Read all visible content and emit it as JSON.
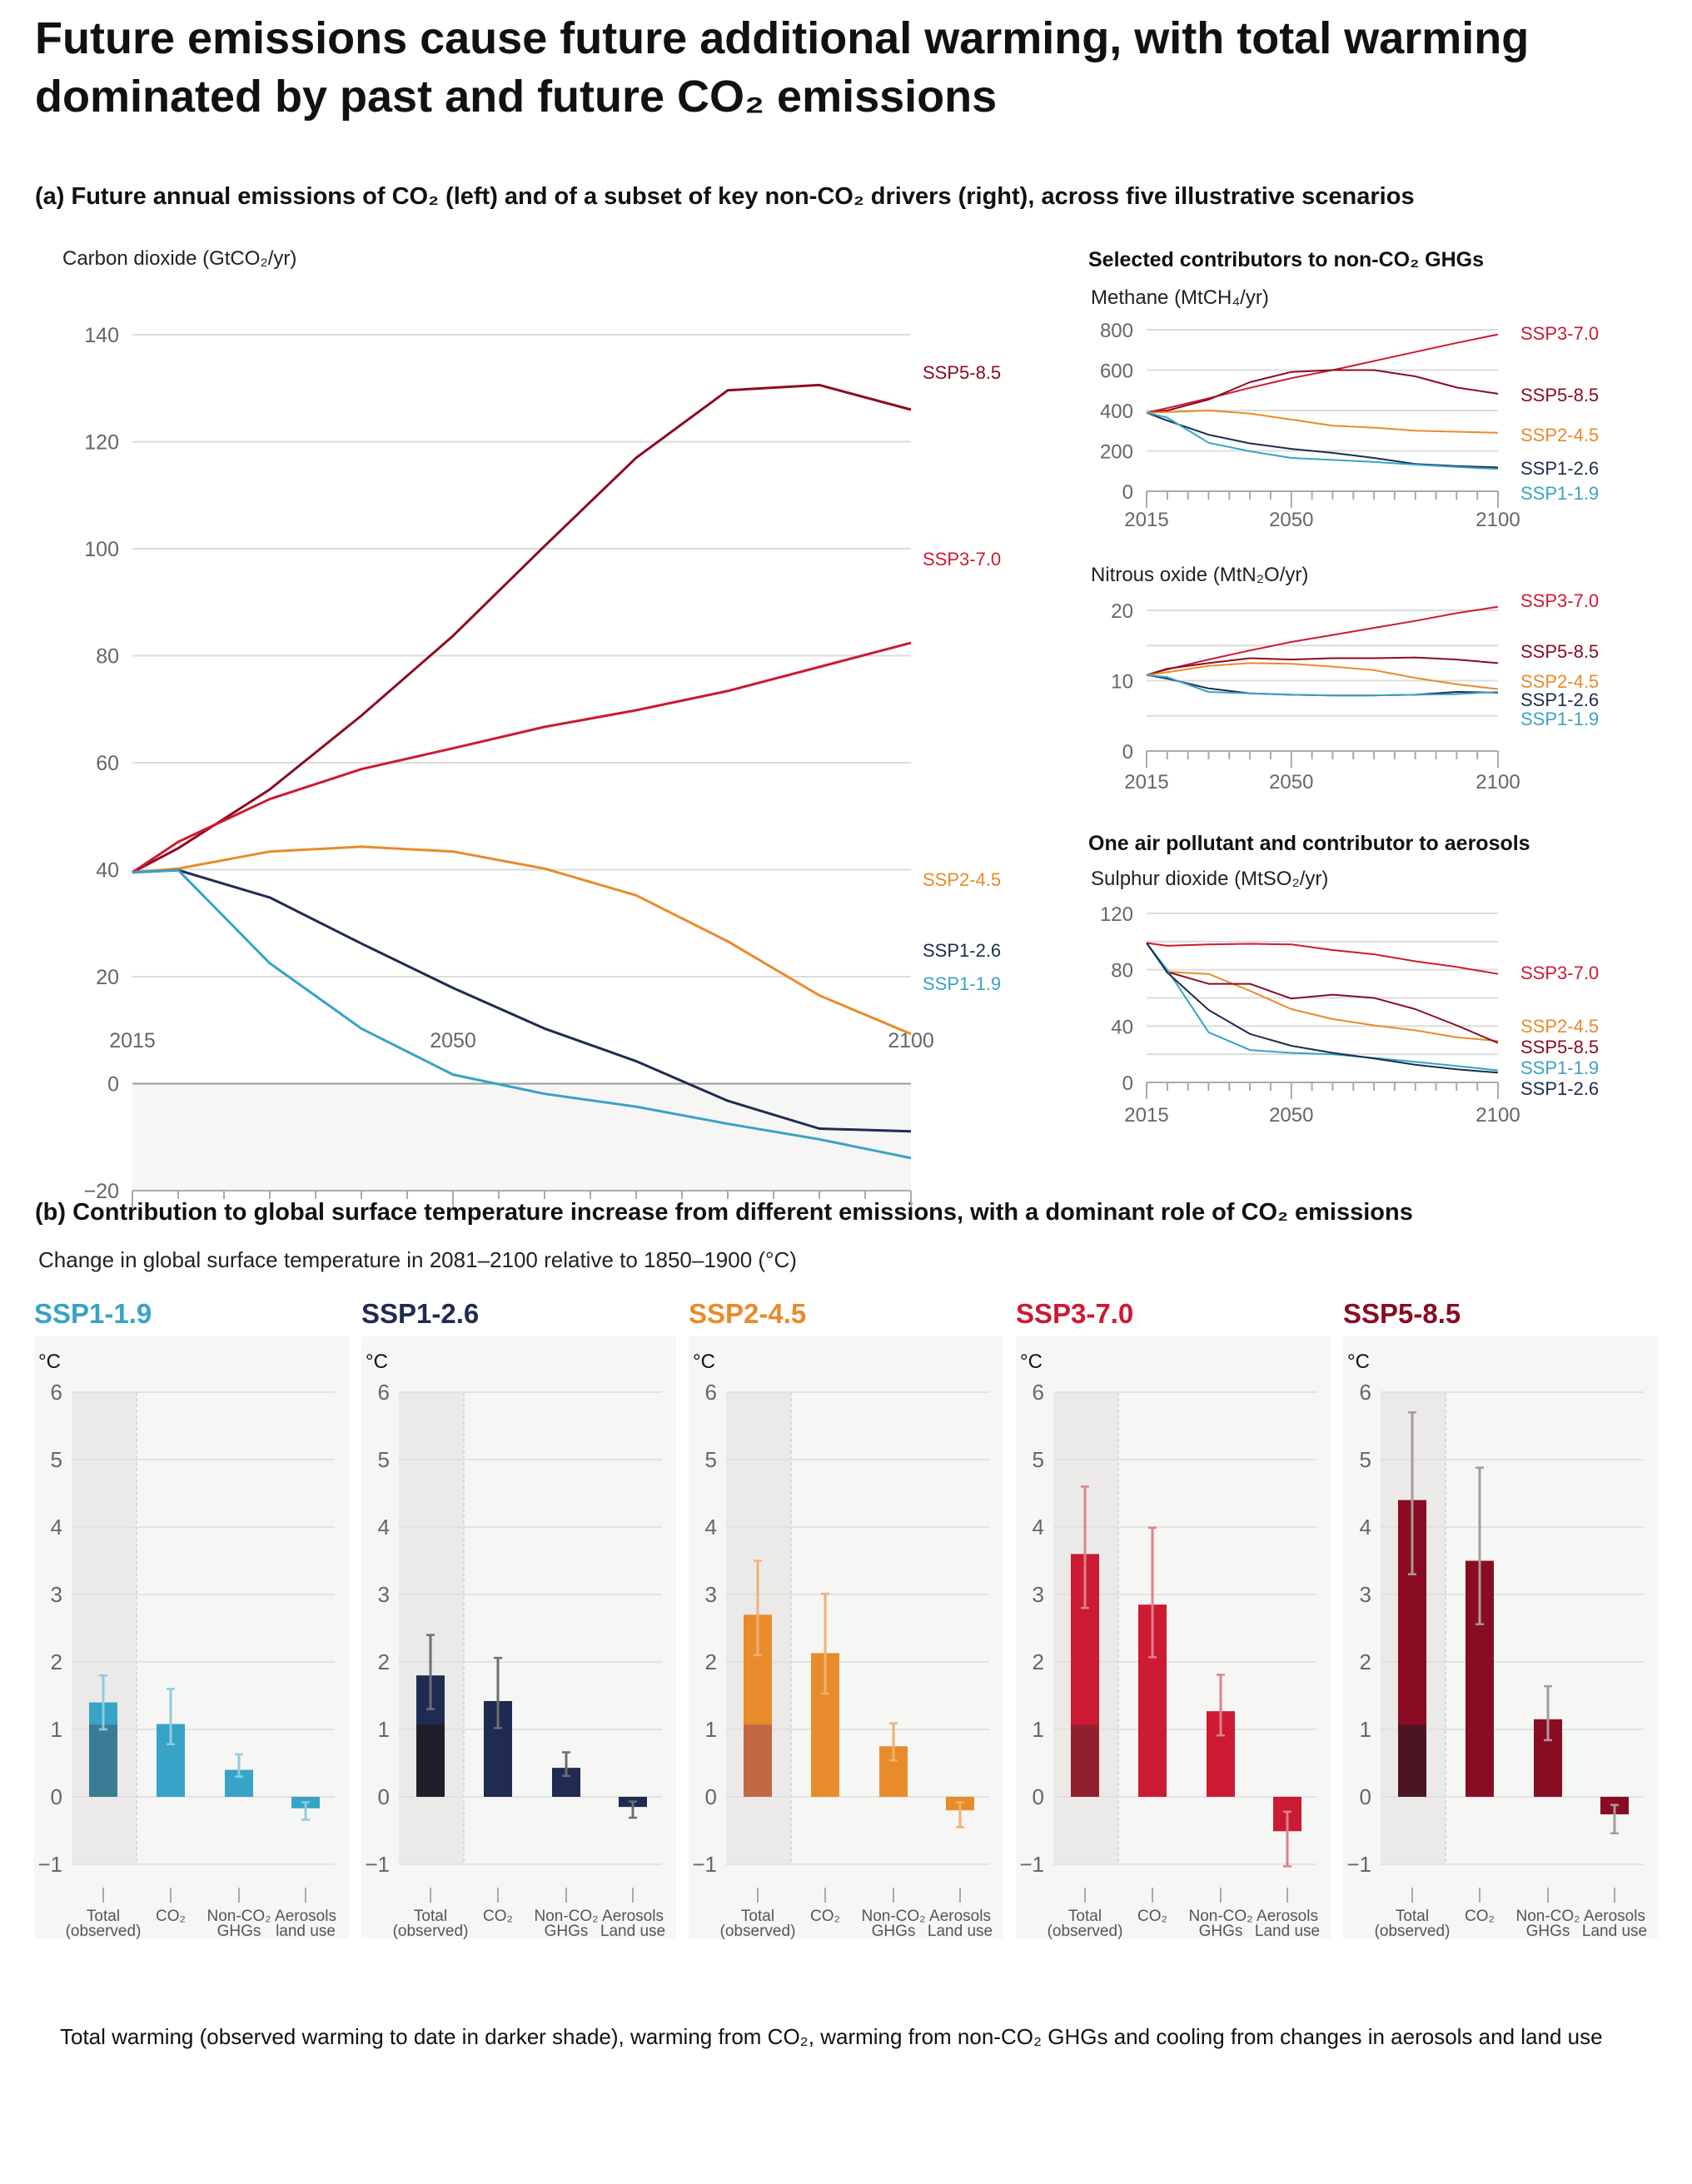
{
  "title": {
    "line1": "Future emissions cause future additional warming, with total warming",
    "line2": "dominated by past and future CO₂ emissions"
  },
  "panel_a": {
    "heading": "(a) Future annual emissions of CO₂ (left) and of a subset of key non-CO₂ drivers (right), across five illustrative scenarios",
    "non_co2_heading": "Selected contributors to non-CO₂ GHGs",
    "aerosol_heading": "One air pollutant and contributor to aerosols"
  },
  "panel_b": {
    "heading": "(b) Contribution to global surface temperature increase from different emissions, with a dominant role of CO₂ emissions",
    "subtitle": "Change in global surface temperature in 2081–2100 relative to 1850–1900 (°C)",
    "footer": "Total warming (observed warming to date in darker shade), warming from CO₂, warming from non-CO₂ GHGs and cooling from changes in aerosols and land use"
  },
  "scenario_colors": {
    "SSP1-1.9": "#37a3c6",
    "SSP1-2.6": "#1f2b50",
    "SSP2-4.5": "#e88b2a",
    "SSP3-7.0": "#cc1a32",
    "SSP5-8.5": "#8a0c22"
  },
  "chart_data": [
    {
      "type": "line",
      "title": "",
      "ylabel": "Carbon dioxide (GtCO₂/yr)",
      "xlabel": "",
      "x": [
        2015,
        2020,
        2030,
        2040,
        2050,
        2060,
        2070,
        2080,
        2090,
        2100
      ],
      "xticks": [
        2015,
        2050,
        2100
      ],
      "ylim": [
        -20,
        140
      ],
      "yticks": [
        -20,
        0,
        20,
        40,
        60,
        80,
        100,
        120,
        140
      ],
      "grid": true,
      "shade_below_zero": true,
      "series": [
        {
          "name": "SSP5-8.5",
          "values": [
            39.5,
            44.0,
            55.0,
            68.8,
            83.7,
            100.5,
            117.0,
            129.6,
            130.6,
            126.0
          ]
        },
        {
          "name": "SSP3-7.0",
          "values": [
            39.5,
            45.2,
            53.2,
            58.8,
            62.7,
            66.7,
            69.8,
            73.4,
            77.9,
            82.4
          ]
        },
        {
          "name": "SSP2-4.5",
          "values": [
            39.5,
            40.2,
            43.4,
            44.3,
            43.4,
            40.2,
            35.2,
            26.6,
            16.5,
            9.3
          ]
        },
        {
          "name": "SSP1-2.6",
          "values": [
            39.5,
            39.9,
            34.8,
            26.2,
            17.9,
            10.3,
            4.2,
            -3.2,
            -8.4,
            -8.9
          ]
        },
        {
          "name": "SSP1-1.9",
          "values": [
            39.5,
            39.9,
            22.5,
            10.3,
            1.7,
            -1.9,
            -4.3,
            -7.5,
            -10.4,
            -13.9
          ]
        }
      ]
    },
    {
      "type": "line",
      "title": "",
      "ylabel": "Methane (MtCH₄/yr)",
      "x": [
        2015,
        2020,
        2030,
        2040,
        2050,
        2060,
        2070,
        2080,
        2090,
        2100
      ],
      "xticks": [
        2015,
        2050,
        2100
      ],
      "ylim": [
        0,
        800
      ],
      "yticks": [
        0,
        200,
        400,
        600,
        800
      ],
      "grid": true,
      "series": [
        {
          "name": "SSP3-7.0",
          "values": [
            389,
            412,
            460,
            512,
            560,
            600,
            645,
            690,
            735,
            777
          ]
        },
        {
          "name": "SSP5-8.5",
          "values": [
            389,
            400,
            454,
            540,
            591,
            600,
            600,
            569,
            514,
            483
          ]
        },
        {
          "name": "SSP2-4.5",
          "values": [
            389,
            392,
            400,
            385,
            355,
            325,
            315,
            300,
            295,
            290
          ]
        },
        {
          "name": "SSP1-2.6",
          "values": [
            389,
            350,
            280,
            237,
            210,
            190,
            165,
            135,
            125,
            118
          ]
        },
        {
          "name": "SSP1-1.9",
          "values": [
            389,
            365,
            240,
            198,
            165,
            155,
            145,
            132,
            120,
            110
          ]
        }
      ]
    },
    {
      "type": "line",
      "title": "",
      "ylabel": "Nitrous oxide (MtN₂O/yr)",
      "x": [
        2015,
        2020,
        2030,
        2040,
        2050,
        2060,
        2070,
        2080,
        2090,
        2100
      ],
      "xticks": [
        2015,
        2050,
        2100
      ],
      "ylim": [
        0,
        20
      ],
      "yticks": [
        0,
        10,
        20
      ],
      "gridlines": [
        0,
        5,
        10,
        15,
        20
      ],
      "grid": true,
      "series": [
        {
          "name": "SSP3-7.0",
          "values": [
            10.8,
            11.6,
            13.0,
            14.3,
            15.5,
            16.5,
            17.5,
            18.5,
            19.6,
            20.5
          ]
        },
        {
          "name": "SSP5-8.5",
          "values": [
            10.8,
            11.7,
            12.5,
            13.2,
            13.0,
            13.2,
            13.2,
            13.3,
            13.0,
            12.5
          ]
        },
        {
          "name": "SSP2-4.5",
          "values": [
            10.8,
            11.2,
            12.1,
            12.5,
            12.4,
            12.0,
            11.5,
            10.4,
            9.5,
            8.8
          ]
        },
        {
          "name": "SSP1-2.6",
          "values": [
            10.8,
            10.3,
            8.9,
            8.2,
            8.0,
            7.9,
            7.9,
            8.0,
            8.4,
            8.3
          ]
        },
        {
          "name": "SSP1-1.9",
          "values": [
            10.8,
            10.5,
            8.4,
            8.2,
            8.0,
            7.9,
            7.9,
            8.0,
            8.1,
            8.4
          ]
        }
      ]
    },
    {
      "type": "line",
      "title": "",
      "ylabel": "Sulphur dioxide (MtSO₂/yr)",
      "x": [
        2015,
        2020,
        2030,
        2040,
        2050,
        2060,
        2070,
        2080,
        2090,
        2100
      ],
      "xticks": [
        2015,
        2050,
        2100
      ],
      "ylim": [
        0,
        120
      ],
      "yticks": [
        0,
        40,
        80,
        120
      ],
      "gridlines": [
        0,
        20,
        40,
        60,
        80,
        100,
        120
      ],
      "grid": true,
      "series": [
        {
          "name": "SSP3-7.0",
          "values": [
            99,
            97,
            98,
            98.4,
            98,
            94,
            91,
            86,
            82,
            77
          ]
        },
        {
          "name": "SSP2-4.5",
          "values": [
            99,
            78.5,
            77,
            65,
            52,
            45,
            40.5,
            37,
            32,
            29.5
          ]
        },
        {
          "name": "SSP5-8.5",
          "values": [
            99,
            78.5,
            70,
            70,
            59.5,
            62.3,
            60,
            52,
            40.5,
            28
          ]
        },
        {
          "name": "SSP1-1.9",
          "values": [
            99,
            80,
            35.6,
            23,
            21,
            20,
            17.4,
            14.6,
            11.7,
            8.5
          ]
        },
        {
          "name": "SSP1-2.6",
          "values": [
            99,
            78,
            51.4,
            34.4,
            26,
            21,
            17,
            12.6,
            9.3,
            6.9
          ]
        }
      ]
    },
    {
      "type": "bar",
      "title": "SSP1-1.9",
      "ylabel": "°C",
      "ylim": [
        -1,
        6
      ],
      "yticks": [
        -1,
        0,
        1,
        2,
        3,
        4,
        5,
        6
      ],
      "categories": [
        [
          "Total",
          "(observed)"
        ],
        [
          "CO₂"
        ],
        [
          "Non-CO₂",
          "GHGs"
        ],
        [
          "Aerosols",
          "land use"
        ]
      ],
      "values": [
        1.4,
        1.08,
        0.4,
        -0.17
      ],
      "observed": 1.07,
      "ranges": [
        [
          1.0,
          1.8
        ],
        [
          0.78,
          1.6
        ],
        [
          0.3,
          0.63
        ],
        [
          -0.34,
          -0.08
        ]
      ],
      "color": "#37a3c6",
      "observed_color": "#3a7c93",
      "error_color": "#8fcbe0"
    },
    {
      "type": "bar",
      "title": "SSP1-2.6",
      "ylabel": "°C",
      "ylim": [
        -1,
        6
      ],
      "yticks": [
        -1,
        0,
        1,
        2,
        3,
        4,
        5,
        6
      ],
      "categories": [
        [
          "Total",
          "(observed)"
        ],
        [
          "CO₂"
        ],
        [
          "Non-CO₂",
          "GHGs"
        ],
        [
          "Aerosols",
          "Land use"
        ]
      ],
      "values": [
        1.8,
        1.42,
        0.43,
        -0.15
      ],
      "observed": 1.07,
      "ranges": [
        [
          1.3,
          2.4
        ],
        [
          1.02,
          2.06
        ],
        [
          0.31,
          0.66
        ],
        [
          -0.31,
          -0.07
        ]
      ],
      "color": "#1f2b50",
      "observed_color": "#221d2a",
      "error_color": "#6e6e6e"
    },
    {
      "type": "bar",
      "title": "SSP2-4.5",
      "ylabel": "°C",
      "ylim": [
        -1,
        6
      ],
      "yticks": [
        -1,
        0,
        1,
        2,
        3,
        4,
        5,
        6
      ],
      "categories": [
        [
          "Total",
          "(observed)"
        ],
        [
          "CO₂"
        ],
        [
          "Non-CO₂",
          "GHGs"
        ],
        [
          "Aerosols",
          "Land use"
        ]
      ],
      "values": [
        2.7,
        2.13,
        0.75,
        -0.2
      ],
      "observed": 1.07,
      "ranges": [
        [
          2.1,
          3.5
        ],
        [
          1.53,
          3.01
        ],
        [
          0.54,
          1.09
        ],
        [
          -0.45,
          -0.08
        ]
      ],
      "color": "#e88b2a",
      "observed_color": "#c06843",
      "error_color": "#efb172"
    },
    {
      "type": "bar",
      "title": "SSP3-7.0",
      "ylabel": "°C",
      "ylim": [
        -1,
        6
      ],
      "yticks": [
        -1,
        0,
        1,
        2,
        3,
        4,
        5,
        6
      ],
      "categories": [
        [
          "Total",
          "(observed)"
        ],
        [
          "CO₂"
        ],
        [
          "Non-CO₂",
          "GHGs"
        ],
        [
          "Aerosols",
          "Land use"
        ]
      ],
      "values": [
        3.6,
        2.85,
        1.27,
        -0.51
      ],
      "observed": 1.07,
      "ranges": [
        [
          2.8,
          4.6
        ],
        [
          2.07,
          3.99
        ],
        [
          0.91,
          1.81
        ],
        [
          -1.03,
          -0.22
        ]
      ],
      "color": "#cc1a32",
      "observed_color": "#921f2e",
      "error_color": "#e0808a"
    },
    {
      "type": "bar",
      "title": "SSP5-8.5",
      "ylabel": "°C",
      "ylim": [
        -1,
        6
      ],
      "yticks": [
        -1,
        0,
        1,
        2,
        3,
        4,
        5,
        6
      ],
      "categories": [
        [
          "Total",
          "(observed)"
        ],
        [
          "CO₂"
        ],
        [
          "Non-CO₂",
          "GHGs"
        ],
        [
          "Aerosols",
          "Land use"
        ]
      ],
      "values": [
        4.4,
        3.5,
        1.15,
        -0.26
      ],
      "observed": 1.07,
      "ranges": [
        [
          3.3,
          5.7
        ],
        [
          2.56,
          4.88
        ],
        [
          0.84,
          1.64
        ],
        [
          -0.54,
          -0.12
        ]
      ],
      "color": "#8a0c22",
      "observed_color": "#4d1523",
      "error_color": "#a89a9c"
    }
  ]
}
